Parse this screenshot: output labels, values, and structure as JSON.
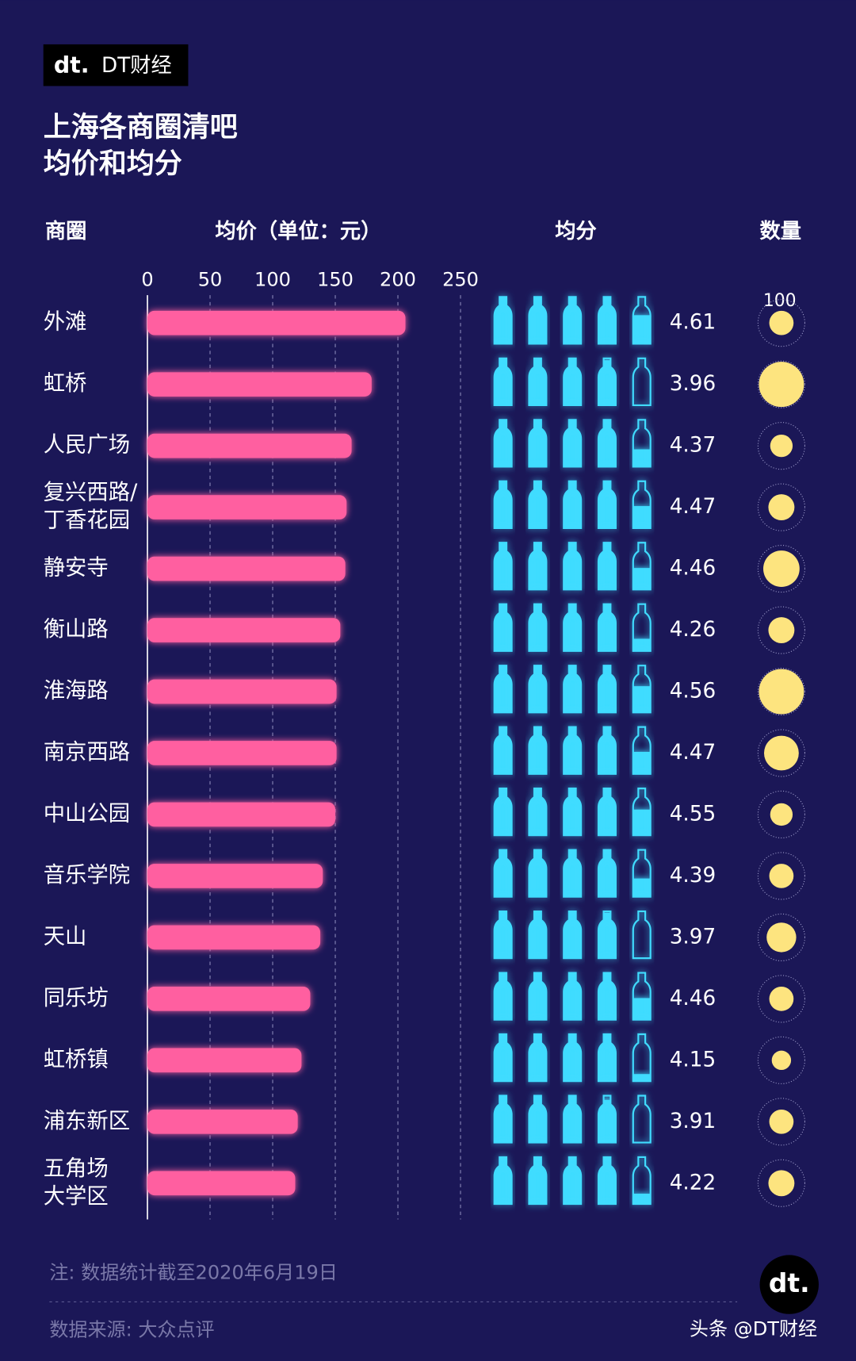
{
  "brand": "DT财经",
  "chart_data": {
    "type": "bar",
    "title": [
      "上海各商圈清吧",
      "均价和均分"
    ],
    "category_header": "商圈",
    "value_header": "均价（单位：元）",
    "score_header": "均分",
    "count_header": "数量",
    "categories": [
      [
        "外滩"
      ],
      [
        "虹桥"
      ],
      [
        "人民广场"
      ],
      [
        "复兴西路/",
        "丁香花园"
      ],
      [
        "静安寺"
      ],
      [
        "衡山路"
      ],
      [
        "淮海路"
      ],
      [
        "南京西路"
      ],
      [
        "中山公园"
      ],
      [
        "音乐学院"
      ],
      [
        "天山"
      ],
      [
        "同乐坊"
      ],
      [
        "虹桥镇"
      ],
      [
        "浦东新区"
      ],
      [
        "五角场",
        "大学区"
      ]
    ],
    "values": [
      206,
      179,
      163,
      159,
      158,
      154,
      151,
      151,
      150,
      140,
      138,
      130,
      123,
      120,
      118
    ],
    "scores": [
      4.61,
      3.96,
      4.37,
      4.47,
      4.46,
      4.26,
      4.56,
      4.47,
      4.55,
      4.39,
      3.97,
      4.46,
      4.15,
      3.91,
      4.22
    ],
    "counts": [
      27,
      93,
      23,
      31,
      60,
      31,
      93,
      55,
      23,
      27,
      40,
      27,
      17,
      27,
      31
    ],
    "count_reference": 100,
    "xlim": [
      0,
      250
    ],
    "xticks": [
      0,
      50,
      100,
      150,
      200,
      250
    ],
    "color": "#ff5fa0",
    "score_color": "#3fdcff",
    "count_color": "#fde47f"
  },
  "note": "注: 数据统计截至2020年6月19日",
  "source": "数据来源: 大众点评",
  "watermark": "头条 @DT财经"
}
